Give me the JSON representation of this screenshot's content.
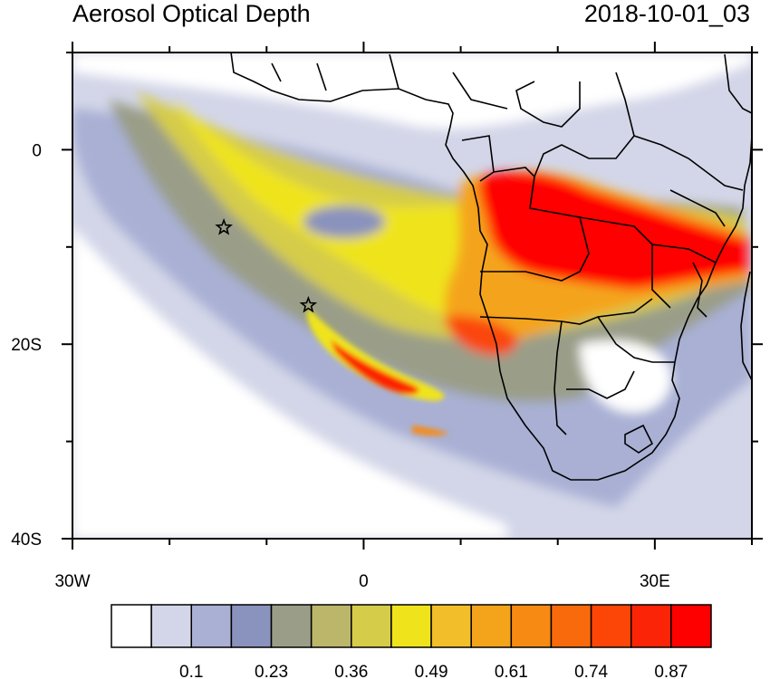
{
  "title": "Aerosol Optical Depth",
  "timestamp": "2018-10-01_03",
  "map": {
    "variable": "Aerosol Optical Depth",
    "lon_range": [
      -30,
      40
    ],
    "lat_range": [
      -40,
      10
    ],
    "x_ticks": [
      {
        "lon": -30,
        "label": "30W"
      },
      {
        "lon": 0,
        "label": "0"
      },
      {
        "lon": 30,
        "label": "30E"
      }
    ],
    "y_ticks": [
      {
        "lat": 0,
        "label": "0"
      },
      {
        "lat": -20,
        "label": "20S"
      },
      {
        "lat": -40,
        "label": "40S"
      }
    ],
    "markers": [
      {
        "name": "star-marker-1",
        "lon": -14.4,
        "lat": -8.0
      },
      {
        "name": "star-marker-2",
        "lon": -5.7,
        "lat": -16.0
      }
    ]
  },
  "colorbar": {
    "colors": [
      "#ffffff",
      "#d3d6e8",
      "#a9b0d4",
      "#8a92be",
      "#9a9e88",
      "#bcb66a",
      "#d5cc4a",
      "#efe41c",
      "#f2bf2a",
      "#f4a41a",
      "#f78a12",
      "#f96a0c",
      "#fb4608",
      "#fc2406",
      "#ff0000"
    ],
    "labels": [
      {
        "after_index": 1,
        "text": "0.1"
      },
      {
        "after_index": 3,
        "text": "0.23"
      },
      {
        "after_index": 5,
        "text": "0.36"
      },
      {
        "after_index": 7,
        "text": "0.49"
      },
      {
        "after_index": 9,
        "text": "0.61"
      },
      {
        "after_index": 11,
        "text": "0.74"
      },
      {
        "after_index": 13,
        "text": "0.87"
      }
    ]
  }
}
